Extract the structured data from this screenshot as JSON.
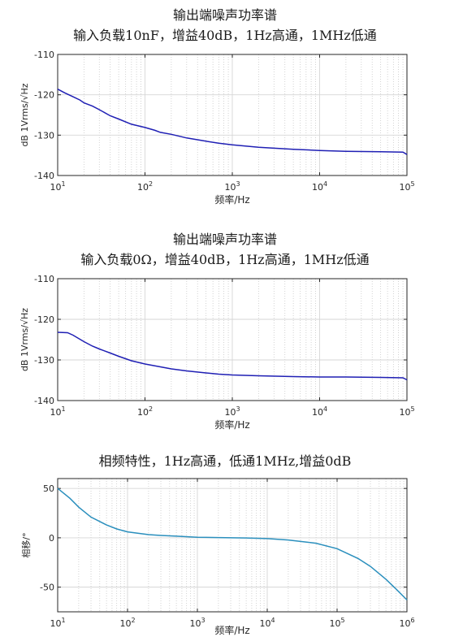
{
  "chart_data": [
    {
      "type": "line",
      "title": "输出端噪声功率谱",
      "subtitle": "输入负载10nF，增益40dB，1Hz高通，1MHz低通",
      "xlabel": "频率/Hz",
      "ylabel": "dB 1Vrms/√Hz",
      "xscale": "log",
      "xlim": [
        10,
        100000
      ],
      "ylim": [
        -140,
        -110
      ],
      "x_ticks": [
        10,
        100,
        1000,
        10000,
        100000
      ],
      "y_ticks": [
        -110,
        -120,
        -130,
        -140
      ],
      "grid": true,
      "line_color": "#1f1fb4",
      "series": [
        {
          "x": [
            10,
            12,
            15,
            18,
            20,
            25,
            30,
            40,
            50,
            70,
            100,
            130,
            150,
            200,
            300,
            500,
            700,
            1000,
            2000,
            5000,
            10000,
            20000,
            50000,
            90000,
            100000
          ],
          "y": [
            -118.6,
            -119.5,
            -120.5,
            -121.3,
            -122.0,
            -122.8,
            -123.7,
            -125.2,
            -126.0,
            -127.3,
            -128.1,
            -128.8,
            -129.3,
            -129.8,
            -130.7,
            -131.5,
            -132.0,
            -132.4,
            -133.0,
            -133.5,
            -133.8,
            -134.0,
            -134.1,
            -134.2,
            -134.8
          ]
        }
      ]
    },
    {
      "type": "line",
      "title": "输出端噪声功率谱",
      "subtitle": "输入负载0Ω，增益40dB，1Hz高通，1MHz低通",
      "xlabel": "频率/Hz",
      "ylabel": "dB 1Vrms/√Hz",
      "xscale": "log",
      "xlim": [
        10,
        100000
      ],
      "ylim": [
        -140,
        -110
      ],
      "x_ticks": [
        10,
        100,
        1000,
        10000,
        100000
      ],
      "y_ticks": [
        -110,
        -120,
        -130,
        -140
      ],
      "grid": true,
      "line_color": "#1f1fb4",
      "series": [
        {
          "x": [
            10,
            13,
            15,
            20,
            25,
            30,
            40,
            50,
            70,
            100,
            150,
            200,
            300,
            500,
            700,
            1000,
            2000,
            5000,
            10000,
            20000,
            50000,
            90000,
            100000
          ],
          "y": [
            -123.2,
            -123.3,
            -123.9,
            -125.5,
            -126.6,
            -127.3,
            -128.3,
            -129.1,
            -130.2,
            -131.0,
            -131.7,
            -132.2,
            -132.7,
            -133.2,
            -133.5,
            -133.7,
            -133.9,
            -134.1,
            -134.2,
            -134.2,
            -134.3,
            -134.4,
            -134.9
          ]
        }
      ]
    },
    {
      "type": "line",
      "title": "相频特性，1Hz高通，低通1MHz,增益0dB",
      "xlabel": "频率/Hz",
      "ylabel": "相移/°",
      "xscale": "log",
      "xlim": [
        10,
        1000000
      ],
      "ylim": [
        -75,
        60
      ],
      "x_ticks": [
        10,
        100,
        1000,
        10000,
        100000,
        1000000
      ],
      "y_ticks": [
        50,
        0,
        -50
      ],
      "grid": true,
      "line_color": "#2a8fbd",
      "series": [
        {
          "x": [
            10,
            15,
            20,
            30,
            50,
            70,
            100,
            200,
            300,
            500,
            1000,
            2000,
            5000,
            10000,
            20000,
            50000,
            100000,
            200000,
            300000,
            500000,
            700000,
            1000000
          ],
          "y": [
            50,
            40,
            31,
            21,
            13,
            9,
            6,
            3.2,
            2.4,
            1.6,
            0.6,
            0.2,
            -0.2,
            -0.8,
            -2.2,
            -5.5,
            -11,
            -21,
            -29,
            -42,
            -52,
            -63
          ]
        }
      ]
    }
  ]
}
